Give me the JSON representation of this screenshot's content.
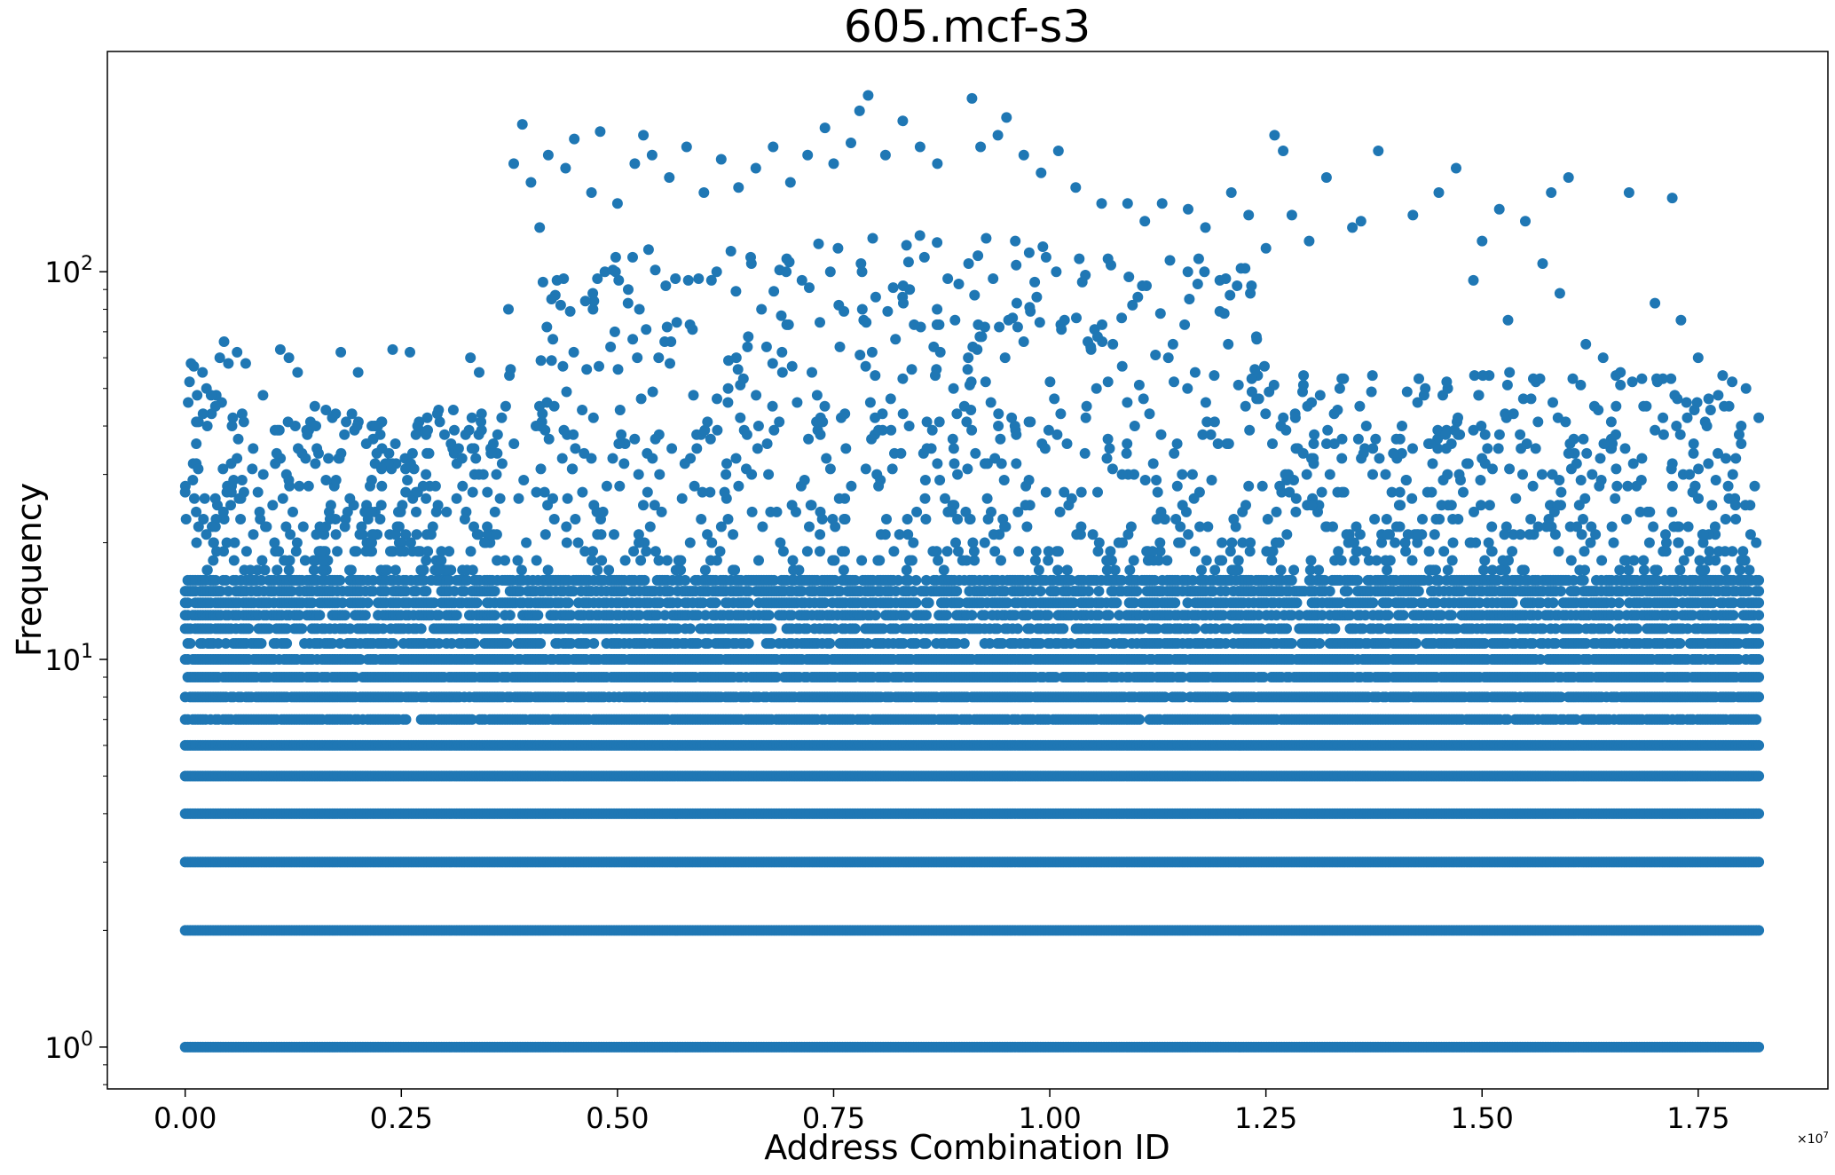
{
  "chart_data": {
    "type": "scatter",
    "title": "605.mcf-s3",
    "xlabel": "Address Combination ID",
    "ylabel": "Frequency",
    "x_offset_label": "×10",
    "x_offset_exponent": "7",
    "xlim": [
      -0.09,
      1.9
    ],
    "ylim": [
      0.78,
      370
    ],
    "y_scale": "log",
    "grid": false,
    "legend": "none",
    "color": "#1f77b4",
    "x_ticks": [
      {
        "value": 0.0,
        "label": "0.00"
      },
      {
        "value": 0.25,
        "label": "0.25"
      },
      {
        "value": 0.5,
        "label": "0.50"
      },
      {
        "value": 0.75,
        "label": "0.75"
      },
      {
        "value": 1.0,
        "label": "1.00"
      },
      {
        "value": 1.25,
        "label": "1.25"
      },
      {
        "value": 1.5,
        "label": "1.50"
      },
      {
        "value": 1.75,
        "label": "1.75"
      }
    ],
    "y_ticks": [
      {
        "value": 1,
        "base": "10",
        "exp": "0"
      },
      {
        "value": 10,
        "base": "10",
        "exp": "1"
      },
      {
        "value": 100,
        "base": "10",
        "exp": "2"
      }
    ],
    "series": [
      {
        "x_range": [
          0.0,
          1.82
        ],
        "dense_levels": [
          1,
          2,
          3,
          4,
          5,
          6,
          7,
          8,
          9,
          10,
          11,
          12,
          13,
          14,
          15,
          16
        ],
        "points": [
          [
            0.005,
            52
          ],
          [
            0.01,
            57
          ],
          [
            0.02,
            55
          ],
          [
            0.03,
            48
          ],
          [
            0.035,
            45
          ],
          [
            0.04,
            60
          ],
          [
            0.045,
            66
          ],
          [
            0.05,
            58
          ],
          [
            0.06,
            62
          ],
          [
            0.07,
            58
          ],
          [
            0.09,
            48
          ],
          [
            0.11,
            63
          ],
          [
            0.12,
            60
          ],
          [
            0.13,
            55
          ],
          [
            0.15,
            45
          ],
          [
            0.18,
            62
          ],
          [
            0.2,
            55
          ],
          [
            0.22,
            40
          ],
          [
            0.24,
            63
          ],
          [
            0.26,
            62
          ],
          [
            0.28,
            42
          ],
          [
            0.3,
            38
          ],
          [
            0.33,
            60
          ],
          [
            0.34,
            55
          ],
          [
            0.36,
            30
          ],
          [
            0.38,
            190
          ],
          [
            0.39,
            240
          ],
          [
            0.4,
            170
          ],
          [
            0.41,
            130
          ],
          [
            0.42,
            200
          ],
          [
            0.43,
            95
          ],
          [
            0.44,
            185
          ],
          [
            0.45,
            220
          ],
          [
            0.47,
            160
          ],
          [
            0.48,
            230
          ],
          [
            0.5,
            150
          ],
          [
            0.52,
            190
          ],
          [
            0.53,
            225
          ],
          [
            0.54,
            200
          ],
          [
            0.56,
            175
          ],
          [
            0.58,
            210
          ],
          [
            0.6,
            160
          ],
          [
            0.62,
            195
          ],
          [
            0.64,
            165
          ],
          [
            0.66,
            185
          ],
          [
            0.68,
            210
          ],
          [
            0.7,
            170
          ],
          [
            0.72,
            200
          ],
          [
            0.74,
            235
          ],
          [
            0.75,
            190
          ],
          [
            0.77,
            215
          ],
          [
            0.78,
            260
          ],
          [
            0.79,
            285
          ],
          [
            0.81,
            200
          ],
          [
            0.83,
            245
          ],
          [
            0.85,
            210
          ],
          [
            0.87,
            190
          ],
          [
            0.91,
            280
          ],
          [
            0.92,
            210
          ],
          [
            0.94,
            225
          ],
          [
            0.95,
            250
          ],
          [
            0.97,
            200
          ],
          [
            0.99,
            180
          ],
          [
            1.01,
            205
          ],
          [
            1.03,
            165
          ],
          [
            1.06,
            150
          ],
          [
            1.09,
            150
          ],
          [
            1.11,
            135
          ],
          [
            1.13,
            150
          ],
          [
            1.16,
            145
          ],
          [
            1.18,
            130
          ],
          [
            1.21,
            160
          ],
          [
            1.23,
            140
          ],
          [
            1.25,
            115
          ],
          [
            1.26,
            225
          ],
          [
            1.27,
            205
          ],
          [
            1.28,
            140
          ],
          [
            1.3,
            120
          ],
          [
            1.32,
            175
          ],
          [
            1.35,
            130
          ],
          [
            1.36,
            135
          ],
          [
            1.38,
            205
          ],
          [
            1.42,
            140
          ],
          [
            1.45,
            160
          ],
          [
            1.47,
            185
          ],
          [
            1.49,
            95
          ],
          [
            1.5,
            120
          ],
          [
            1.52,
            145
          ],
          [
            1.53,
            75
          ],
          [
            1.55,
            135
          ],
          [
            1.57,
            105
          ],
          [
            1.58,
            160
          ],
          [
            1.59,
            88
          ],
          [
            1.6,
            175
          ],
          [
            1.62,
            65
          ],
          [
            1.63,
            45
          ],
          [
            1.64,
            60
          ],
          [
            1.66,
            55
          ],
          [
            1.67,
            160
          ],
          [
            1.69,
            45
          ],
          [
            1.7,
            83
          ],
          [
            1.71,
            38
          ],
          [
            1.72,
            155
          ],
          [
            1.73,
            75
          ],
          [
            1.74,
            30
          ],
          [
            1.75,
            60
          ],
          [
            1.76,
            40
          ],
          [
            1.78,
            45
          ],
          [
            1.79,
            30
          ],
          [
            1.8,
            18
          ],
          [
            1.81,
            25
          ],
          [
            1.82,
            42
          ]
        ]
      }
    ]
  }
}
